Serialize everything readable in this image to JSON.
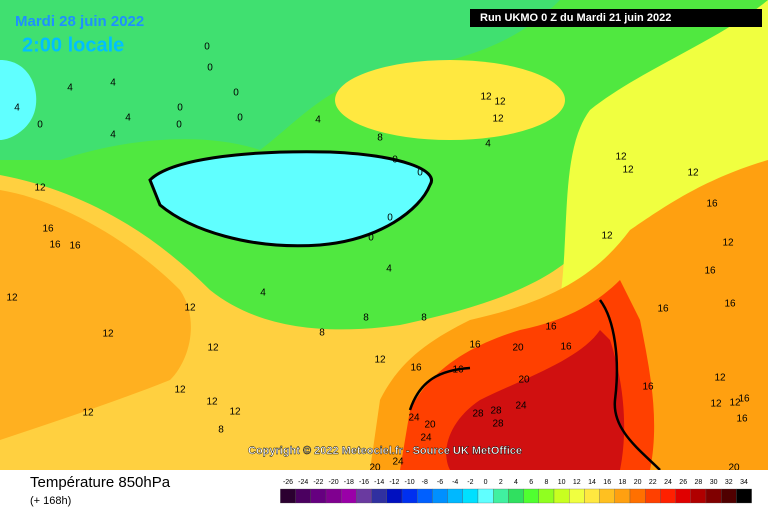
{
  "header": {
    "date": "Mardi 28 juin 2022",
    "time": "2:00 locale",
    "run": "Run UKMO 0 Z du Mardi 21 juin 2022"
  },
  "copyright": "Copyright © 2022 Meteociel.fr - Source UK MetOffice",
  "footer": {
    "title": "Température 850hPa",
    "subtitle": "(+ 168h)"
  },
  "legend": {
    "ticks": [
      -26,
      -24,
      -22,
      -20,
      -18,
      -16,
      -14,
      -12,
      -10,
      -8,
      -6,
      -4,
      -2,
      0,
      2,
      4,
      6,
      8,
      10,
      12,
      14,
      16,
      18,
      20,
      22,
      24,
      26,
      28,
      30,
      32,
      34
    ],
    "colors": [
      "#2b0030",
      "#4b0060",
      "#660080",
      "#800090",
      "#9a00a8",
      "#6a3aa0",
      "#3030a0",
      "#0010c0",
      "#0030f0",
      "#0060ff",
      "#0090ff",
      "#00b8ff",
      "#00e0ff",
      "#60ffff",
      "#40f0a0",
      "#30e060",
      "#50ff30",
      "#90ff20",
      "#c8ff20",
      "#f0ff40",
      "#ffe840",
      "#ffc020",
      "#ffa010",
      "#ff7000",
      "#ff4000",
      "#ff2000",
      "#e00000",
      "#b00000",
      "#800000",
      "#500000",
      "#000000"
    ]
  },
  "contour_labels": [
    0,
    0,
    0,
    0,
    0,
    0,
    4,
    4,
    4,
    4,
    0,
    4,
    4,
    8,
    12,
    12,
    12,
    4,
    0,
    0,
    0,
    0,
    12,
    16,
    16,
    16,
    12,
    4,
    4,
    8,
    8,
    8,
    12,
    12,
    12,
    12,
    12,
    12,
    12,
    8,
    12,
    16,
    20,
    16,
    16,
    16,
    16,
    20,
    24,
    20,
    24,
    28,
    28,
    24,
    28,
    12,
    12,
    12,
    16,
    12,
    16,
    16,
    16,
    16,
    12,
    12,
    12,
    16,
    16,
    24,
    20,
    20,
    12
  ]
}
